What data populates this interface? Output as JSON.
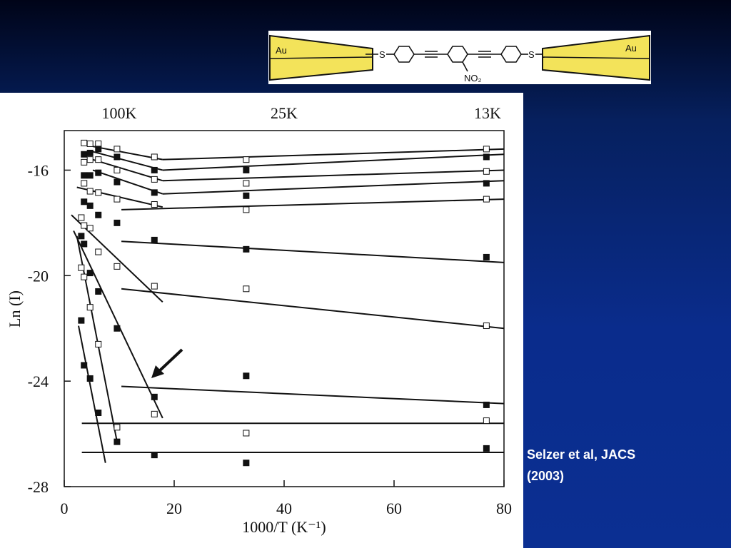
{
  "chart_data": {
    "type": "scatter",
    "xlabel": "1000/T (K⁻¹)",
    "ylabel": "Ln (I)",
    "xlim": [
      0,
      80
    ],
    "ylim": [
      -28,
      -14.5
    ],
    "xticks": [
      0,
      20,
      40,
      60,
      80
    ],
    "yticks": [
      -28,
      -24,
      -20,
      -16
    ],
    "x2ticks": [
      {
        "value": 10,
        "label": "100K"
      },
      {
        "value": 40,
        "label": "25K"
      },
      {
        "value": 77,
        "label": "13K"
      }
    ],
    "series": [
      {
        "marker": "open",
        "color": "#111111",
        "x": [
          3.6,
          4.7,
          6.2,
          9.6,
          16.4,
          33.1,
          76.8,
          3.6,
          4.7,
          6.2,
          9.6,
          16.4,
          33.1,
          76.8,
          3.6,
          4.7,
          6.2,
          9.6,
          16.4,
          33.1,
          76.8,
          3.1,
          3.6,
          4.7,
          6.2,
          9.6,
          16.4,
          33.1,
          76.8,
          3.1,
          3.6,
          4.7,
          6.2,
          9.6,
          16.4,
          33.1,
          76.8
        ],
        "y": [
          -14.97,
          -15.0,
          -15.0,
          -15.2,
          -15.5,
          -15.6,
          -15.2,
          -15.7,
          -15.6,
          -15.6,
          -16.0,
          -16.35,
          -16.5,
          -16.05,
          -16.5,
          -16.8,
          -16.85,
          -17.1,
          -17.3,
          -17.5,
          -17.1,
          -17.8,
          -18.1,
          -18.2,
          -19.1,
          -19.65,
          -20.4,
          -20.5,
          -21.9,
          -19.7,
          -20.05,
          -21.2,
          -22.6,
          -25.75,
          -25.25,
          -25.97,
          -25.5
        ]
      },
      {
        "marker": "filled",
        "color": "#111111",
        "x": [
          3.6,
          4.7,
          6.2,
          9.6,
          16.4,
          33.1,
          76.8,
          3.6,
          4.7,
          6.2,
          9.6,
          16.4,
          33.1,
          76.8,
          3.6,
          4.7,
          6.2,
          9.6,
          16.4,
          33.1,
          76.8,
          3.1,
          3.6,
          4.7,
          6.2,
          9.6,
          16.4,
          33.1,
          76.8,
          3.1,
          3.6,
          4.7,
          6.2,
          9.6,
          16.4,
          33.1,
          76.8
        ],
        "y": [
          -15.4,
          -15.35,
          -15.2,
          -15.5,
          -16.0,
          -16.0,
          -15.5,
          -16.2,
          -16.2,
          -16.1,
          -16.45,
          -16.85,
          -16.97,
          -16.5,
          -17.2,
          -17.35,
          -17.7,
          -18.0,
          -18.65,
          -19.0,
          -19.3,
          -18.5,
          -18.8,
          -19.9,
          -20.6,
          -22.0,
          -24.6,
          -23.8,
          -24.9,
          -21.7,
          -23.4,
          -23.9,
          -25.2,
          -26.3,
          -26.8,
          -27.1,
          -26.55
        ]
      }
    ],
    "lines": [
      {
        "x": [
          5.2,
          17.9
        ],
        "y": [
          -15.1,
          -15.6
        ]
      },
      {
        "x": [
          17.9,
          80
        ],
        "y": [
          -15.6,
          -15.2
        ]
      },
      {
        "x": [
          5.2,
          17.9
        ],
        "y": [
          -15.3,
          -16.0
        ]
      },
      {
        "x": [
          17.9,
          80
        ],
        "y": [
          -16.0,
          -15.4
        ]
      },
      {
        "x": [
          5.2,
          17.9
        ],
        "y": [
          -15.6,
          -16.4
        ]
      },
      {
        "x": [
          17.9,
          80
        ],
        "y": [
          -16.4,
          -16.0
        ]
      },
      {
        "x": [
          5.2,
          17.9
        ],
        "y": [
          -16.0,
          -16.9
        ]
      },
      {
        "x": [
          17.9,
          80
        ],
        "y": [
          -16.9,
          -16.4
        ]
      },
      {
        "x": [
          2.3,
          17.9
        ],
        "y": [
          -16.65,
          -17.4
        ]
      },
      {
        "x": [
          10.4,
          80
        ],
        "y": [
          -17.5,
          -17.1
        ]
      },
      {
        "x": [
          10.4,
          80
        ],
        "y": [
          -18.7,
          -19.5
        ]
      },
      {
        "x": [
          1.3,
          17.9
        ],
        "y": [
          -17.7,
          -21.0
        ]
      },
      {
        "x": [
          10.4,
          80
        ],
        "y": [
          -20.5,
          -22.0
        ]
      },
      {
        "x": [
          1.7,
          17.9
        ],
        "y": [
          -18.3,
          -25.4
        ]
      },
      {
        "x": [
          10.4,
          80
        ],
        "y": [
          -24.2,
          -24.85
        ]
      },
      {
        "x": [
          2.3,
          9.7
        ],
        "y": [
          -18.5,
          -26.4
        ]
      },
      {
        "x": [
          3.2,
          80
        ],
        "y": [
          -25.6,
          -25.6
        ]
      },
      {
        "x": [
          2.6,
          7.5
        ],
        "y": [
          -21.9,
          -27.1
        ]
      },
      {
        "x": [
          3.2,
          80
        ],
        "y": [
          -26.7,
          -26.7
        ]
      }
    ]
  },
  "molecule": {
    "left_electrode": "Au",
    "right_electrode": "Au",
    "left_atom": "S",
    "right_atom": "S",
    "group": "NO₂"
  },
  "caption": [
    "Selzer et al, JACS",
    "(2003)"
  ]
}
